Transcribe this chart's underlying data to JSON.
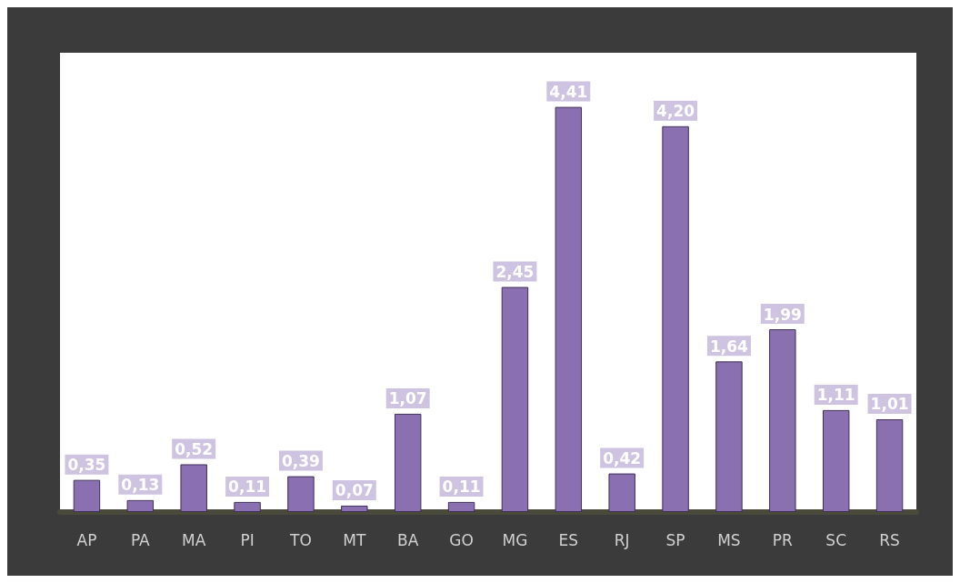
{
  "chart_data": {
    "type": "bar",
    "categories": [
      "AP",
      "PA",
      "MA",
      "PI",
      "TO",
      "MT",
      "BA",
      "GO",
      "MG",
      "ES",
      "RJ",
      "SP",
      "MS",
      "PR",
      "SC",
      "RS"
    ],
    "values": [
      0.35,
      0.13,
      0.52,
      0.11,
      0.39,
      0.07,
      1.07,
      0.11,
      2.45,
      4.41,
      0.42,
      4.2,
      1.64,
      1.99,
      1.11,
      1.01
    ],
    "value_labels": [
      "0,35",
      "0,13",
      "0,52",
      "0,11",
      "0,39",
      "0,07",
      "1,07",
      "0,11",
      "2,45",
      "4,41",
      "0,42",
      "4,20",
      "1,64",
      "1,99",
      "1,11",
      "1,01"
    ],
    "color": "#8a70b0"
  }
}
